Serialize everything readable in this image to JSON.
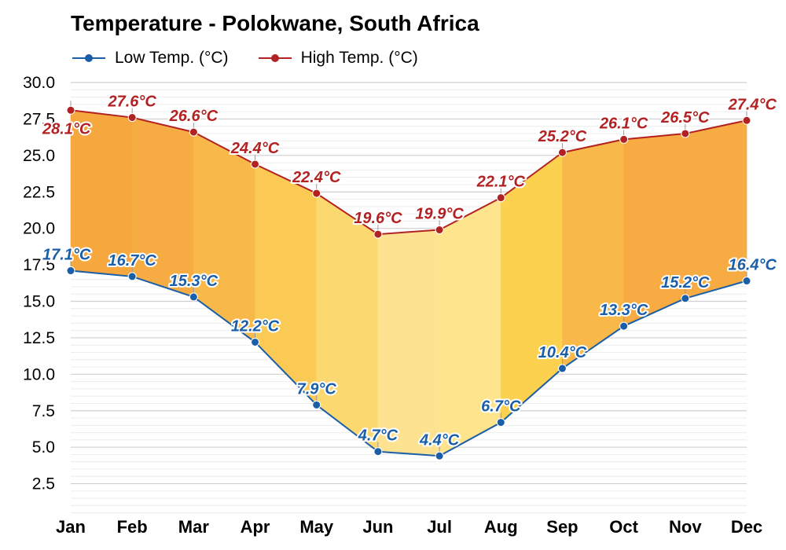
{
  "chart_data": {
    "type": "line",
    "title": "Temperature - Polokwane, South Africa",
    "categories": [
      "Jan",
      "Feb",
      "Mar",
      "Apr",
      "May",
      "Jun",
      "Jul",
      "Aug",
      "Sep",
      "Oct",
      "Nov",
      "Dec"
    ],
    "series": [
      {
        "name": "Low Temp. (°C)",
        "color": "#1a5ea8",
        "values": [
          17.1,
          16.7,
          15.3,
          12.2,
          7.9,
          4.7,
          4.4,
          6.7,
          10.4,
          13.3,
          15.2,
          16.4
        ],
        "labels": [
          "17.1°C",
          "16.7°C",
          "15.3°C",
          "12.2°C",
          "7.9°C",
          "4.7°C",
          "4.4°C",
          "6.7°C",
          "10.4°C",
          "13.3°C",
          "15.2°C",
          "16.4°C"
        ]
      },
      {
        "name": "High Temp. (°C)",
        "color": "#b22222",
        "values": [
          28.1,
          27.6,
          26.6,
          24.4,
          22.4,
          19.6,
          19.9,
          22.1,
          25.2,
          26.1,
          26.5,
          27.4
        ],
        "labels": [
          "28.1°C",
          "27.6°C",
          "26.6°C",
          "24.4°C",
          "22.4°C",
          "19.6°C",
          "19.9°C",
          "22.1°C",
          "25.2°C",
          "26.1°C",
          "26.5°C",
          "27.4°C"
        ]
      }
    ],
    "band_colors": [
      "#f6a83f",
      "#f7ac43",
      "#f9b94a",
      "#fbca55",
      "#fcd870",
      "#fde291",
      "#fde48d",
      "#fbd14f",
      "#f9b94a",
      "#f7ab42",
      "#f7ac43",
      "#f6a83f"
    ],
    "yticks": [
      "30.0",
      "27.5",
      "25.0",
      "22.5",
      "20.0",
      "17.5",
      "15.0",
      "12.5",
      "10.0",
      "7.5",
      "5.0",
      "2.5"
    ],
    "ylim": [
      0,
      30
    ],
    "xlabel": "",
    "ylabel": "",
    "grid": true,
    "legend_position": "top-left"
  }
}
